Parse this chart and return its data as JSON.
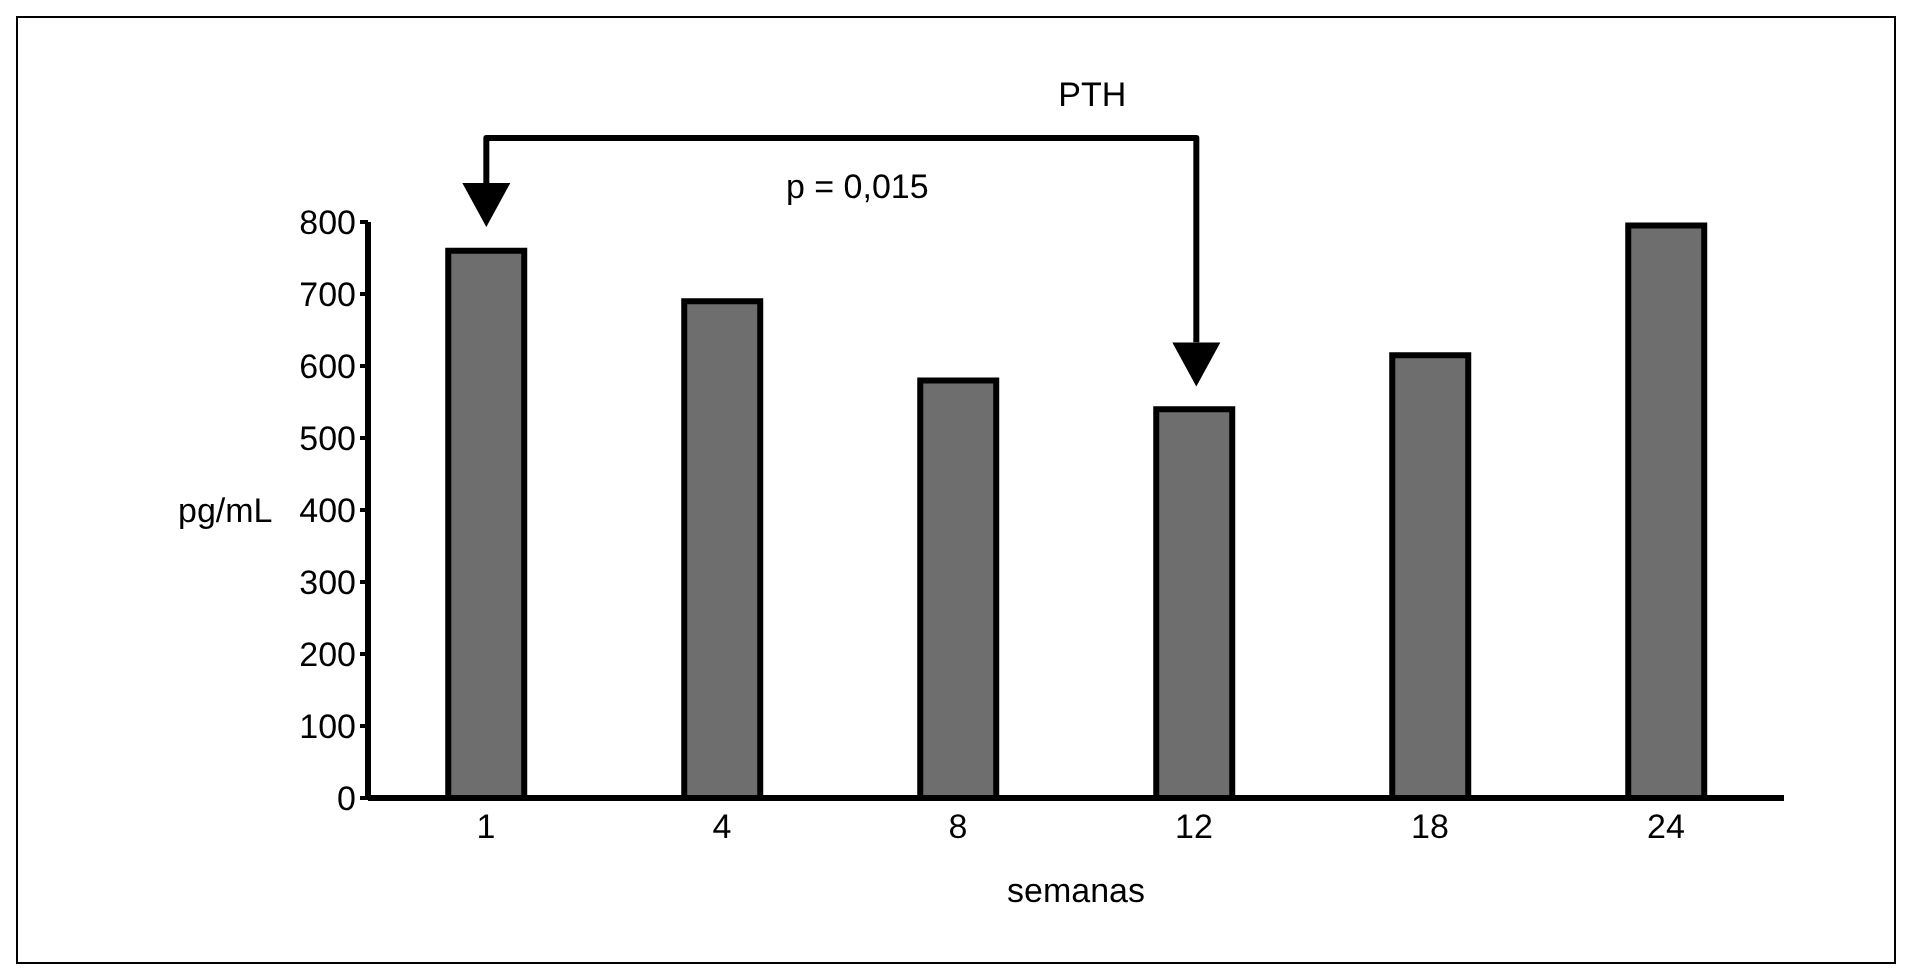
{
  "chart_data": {
    "type": "bar",
    "xlabel": "semanas",
    "ylabel": "pg/mL",
    "categories": [
      "1",
      "4",
      "8",
      "12",
      "18",
      "24"
    ],
    "values": [
      760,
      690,
      580,
      540,
      615,
      795
    ],
    "color": "#6e6e6e",
    "ylim": [
      0,
      800
    ],
    "yticks": [
      0,
      100,
      200,
      300,
      400,
      500,
      600,
      700,
      800
    ],
    "grid": false,
    "annotations": [
      "PTH",
      "p = 0,015"
    ]
  }
}
